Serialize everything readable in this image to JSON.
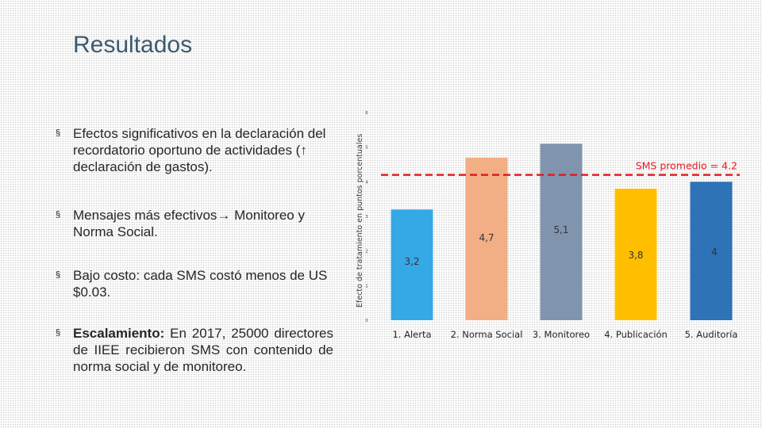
{
  "slide": {
    "title": "Resultados",
    "bullets": [
      {
        "marker": "§",
        "text": "Efectos significativos en la declaración del recordatorio oportuno de actividades (↑ declaración de gastos)."
      },
      {
        "marker": "§",
        "text": "Mensajes más efectivos→ Monitoreo y Norma Social."
      },
      {
        "marker": "§",
        "text": "Bajo costo: cada SMS costó menos de US $0.03."
      },
      {
        "marker": "§",
        "bold": "Escalamiento:",
        "text": " En 2017, 25000 directores de IIEE recibieron SMS con contenido de norma social y de monitoreo."
      }
    ]
  },
  "chart_data": {
    "type": "bar",
    "categories": [
      "1. Alerta",
      "2. Norma Social",
      "3. Monitoreo",
      "4. Publicación",
      "5. Auditoría"
    ],
    "values": [
      3.2,
      4.7,
      5.1,
      3.8,
      4
    ],
    "data_labels": [
      "3,2",
      "4,7",
      "5,1",
      "3,8",
      "4"
    ],
    "colors": [
      "#35a8e6",
      "#f2ae85",
      "#8095ad",
      "#ffbe00",
      "#2e72b8"
    ],
    "ylabel": "Efecto de tratamiento en puntos porcentuales",
    "ylim": [
      0,
      6
    ],
    "yticks": [
      0,
      1,
      2,
      3,
      4,
      5,
      6
    ],
    "grid": false,
    "reference_line": {
      "value": 4.2,
      "label": "SMS promedio = 4.2",
      "color": "#e11b22",
      "style": "dashed"
    }
  }
}
